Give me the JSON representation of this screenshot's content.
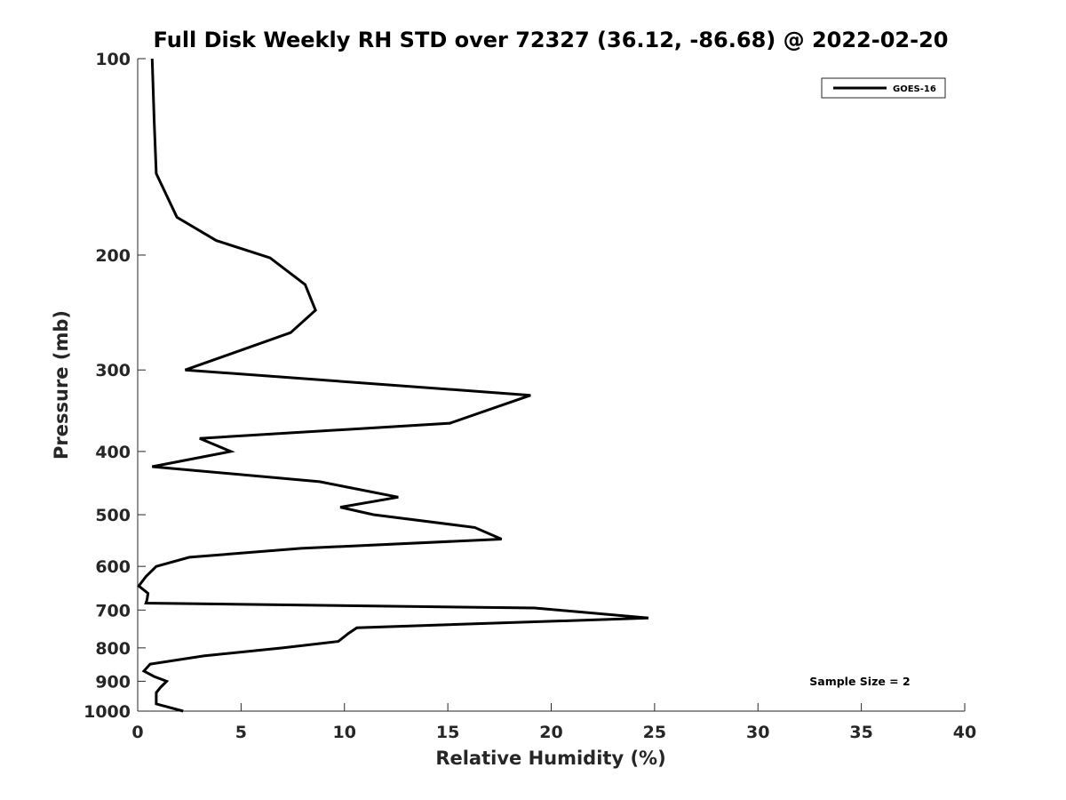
{
  "chart_data": {
    "type": "line",
    "title": "Full Disk Weekly RH STD over 72327 (36.12, -86.68) @ 2022-02-20",
    "xlabel": "Relative Humidity (%)",
    "ylabel": "Pressure (mb)",
    "xlim": [
      0,
      40
    ],
    "ylim": [
      100,
      1000
    ],
    "y_scale": "log",
    "y_reversed": true,
    "x_ticks": [
      0,
      5,
      10,
      15,
      20,
      25,
      30,
      35,
      40
    ],
    "y_ticks": [
      100,
      200,
      300,
      400,
      500,
      600,
      700,
      800,
      900,
      1000
    ],
    "grid": false,
    "legend_position": "top-right",
    "annotation": "Sample Size = 2",
    "series": [
      {
        "name": "GOES-16",
        "color": "#000000",
        "points": [
          [
            0.7,
            100
          ],
          [
            0.8,
            125
          ],
          [
            0.9,
            150
          ],
          [
            1.9,
            175
          ],
          [
            3.8,
            190
          ],
          [
            6.4,
            202
          ],
          [
            8.1,
            222
          ],
          [
            8.6,
            243
          ],
          [
            7.4,
            263
          ],
          [
            2.3,
            300
          ],
          [
            19.0,
            328
          ],
          [
            15.1,
            362
          ],
          [
            3.0,
            382
          ],
          [
            4.5,
            400
          ],
          [
            0.7,
            422
          ],
          [
            8.8,
            445
          ],
          [
            12.6,
            470
          ],
          [
            9.8,
            487
          ],
          [
            11.4,
            500
          ],
          [
            16.3,
            523
          ],
          [
            17.6,
            545
          ],
          [
            7.9,
            563
          ],
          [
            2.5,
            581
          ],
          [
            0.9,
            600
          ],
          [
            0.4,
            622
          ],
          [
            0.05,
            643
          ],
          [
            0.5,
            660
          ],
          [
            0.45,
            675
          ],
          [
            0.4,
            683
          ],
          [
            19.2,
            695
          ],
          [
            24.7,
            720
          ],
          [
            10.6,
            745
          ],
          [
            10.2,
            760
          ],
          [
            9.7,
            782
          ],
          [
            7.0,
            800
          ],
          [
            3.2,
            823
          ],
          [
            0.6,
            847
          ],
          [
            0.3,
            868
          ],
          [
            0.8,
            885
          ],
          [
            1.4,
            900
          ],
          [
            1.1,
            920
          ],
          [
            0.9,
            937
          ],
          [
            0.9,
            975
          ],
          [
            2.2,
            1000
          ]
        ]
      }
    ]
  }
}
